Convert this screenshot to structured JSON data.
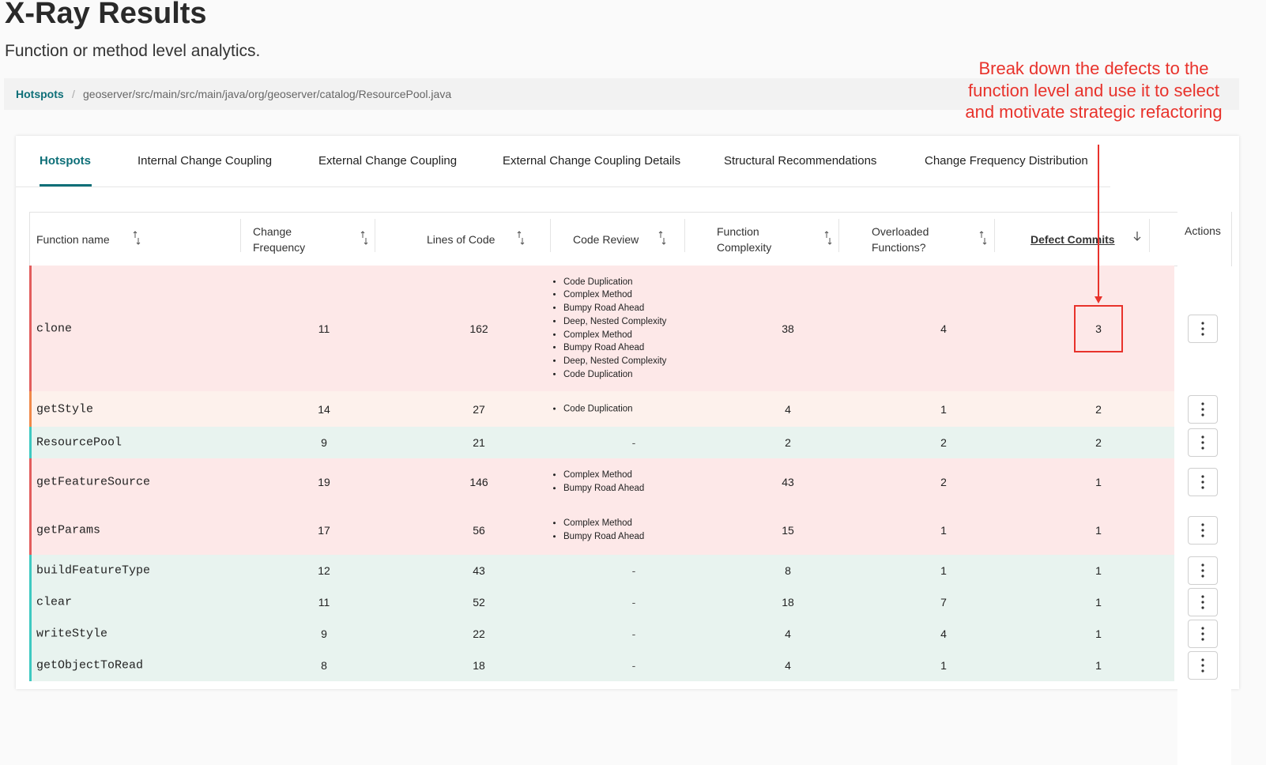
{
  "header": {
    "title": "X-Ray Results",
    "subtitle": "Function or method level analytics."
  },
  "breadcrumb": {
    "root": "Hotspots",
    "separator": "/",
    "path": "geoserver/src/main/src/main/java/org/geoserver/catalog/ResourcePool.java"
  },
  "annotation": {
    "text": "Break down the defects to the function level and use it to select and motivate strategic refactoring",
    "color": "#e8322b"
  },
  "tabs": {
    "items": [
      "Hotspots",
      "Internal Change Coupling",
      "External Change Coupling",
      "External Change Coupling Details",
      "Structural Recommendations",
      "Change Frequency Distribution"
    ],
    "active": 0
  },
  "table": {
    "columns": [
      "Function name",
      "Change Frequency",
      "Lines of Code",
      "Code Review",
      "Function Complexity",
      "Overloaded Functions?",
      "Defect Commits"
    ],
    "actions_header": "Actions",
    "rows": [
      {
        "name": "clone",
        "change_frequency": 11,
        "lines_of_code": 162,
        "code_review": [
          "Code Duplication",
          "Complex Method",
          "Bumpy Road Ahead",
          "Deep, Nested Complexity",
          "Complex Method",
          "Bumpy Road Ahead",
          "Deep, Nested Complexity",
          "Code Duplication"
        ],
        "function_complexity": 38,
        "overloaded_functions": 4,
        "defect_commits": 3,
        "color": "#e25d5d",
        "background": "#fde8e8"
      },
      {
        "name": "getStyle",
        "change_frequency": 14,
        "lines_of_code": 27,
        "code_review": [
          "Code Duplication"
        ],
        "function_complexity": 4,
        "overloaded_functions": 1,
        "defect_commits": 2,
        "color": "#f0894a",
        "background": "#fdf1ec"
      },
      {
        "name": "ResourcePool",
        "change_frequency": 9,
        "lines_of_code": 21,
        "code_review": "-",
        "function_complexity": 2,
        "overloaded_functions": 2,
        "defect_commits": 2,
        "color": "#3ec9c1",
        "background": "#e8f3ef"
      },
      {
        "name": "getFeatureSource",
        "change_frequency": 19,
        "lines_of_code": 146,
        "code_review": [
          "Complex Method",
          "Bumpy Road Ahead"
        ],
        "function_complexity": 43,
        "overloaded_functions": 2,
        "defect_commits": 1,
        "color": "#e25d5d",
        "background": "#fde8e8"
      },
      {
        "name": "getParams",
        "change_frequency": 17,
        "lines_of_code": 56,
        "code_review": [
          "Complex Method",
          "Bumpy Road Ahead"
        ],
        "function_complexity": 15,
        "overloaded_functions": 1,
        "defect_commits": 1,
        "color": "#e25d5d",
        "background": "#fde8e8"
      },
      {
        "name": "buildFeatureType",
        "change_frequency": 12,
        "lines_of_code": 43,
        "code_review": "-",
        "function_complexity": 8,
        "overloaded_functions": 1,
        "defect_commits": 1,
        "color": "#3ec9c1",
        "background": "#e8f3ef"
      },
      {
        "name": "clear",
        "change_frequency": 11,
        "lines_of_code": 52,
        "code_review": "-",
        "function_complexity": 18,
        "overloaded_functions": 7,
        "defect_commits": 1,
        "color": "#3ec9c1",
        "background": "#e8f3ef"
      },
      {
        "name": "writeStyle",
        "change_frequency": 9,
        "lines_of_code": 22,
        "code_review": "-",
        "function_complexity": 4,
        "overloaded_functions": 4,
        "defect_commits": 1,
        "color": "#3ec9c1",
        "background": "#e8f3ef"
      },
      {
        "name": "getObjectToRead",
        "change_frequency": 8,
        "lines_of_code": 18,
        "code_review": "-",
        "function_complexity": 4,
        "overloaded_functions": 1,
        "defect_commits": 1,
        "color": "#3ec9c1",
        "background": "#e8f3ef"
      }
    ]
  }
}
